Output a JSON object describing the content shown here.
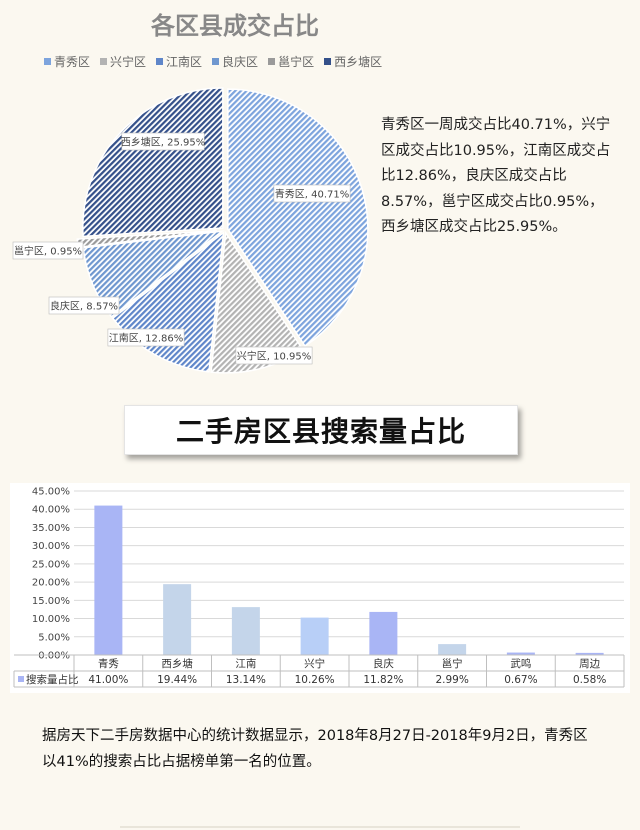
{
  "pie": {
    "title": "各区县成交占比",
    "description": "青秀区一周成交占比40.71%，兴宁区成交占比10.95%，江南区成交占比12.86%，良庆区成交占比8.57%，邕宁区成交占比0.95%，西乡塘区成交占比25.95%。"
  },
  "bar": {
    "heading": "二手房区县搜索量占比",
    "table_series_label": "搜索量占比",
    "footer": "据房天下二手房数据中心的统计数据显示，2018年8月27日-2018年9月2日，青秀区以41%的搜索占比占据榜单第一名的位置。"
  },
  "chart_data": [
    {
      "type": "pie",
      "title": "各区县成交占比",
      "legend_position": "top",
      "slices": [
        {
          "name": "青秀区",
          "value": 40.71,
          "label": "青秀区, 40.71%",
          "color": "#7da4dd"
        },
        {
          "name": "兴宁区",
          "value": 10.95,
          "label": "兴宁区, 10.95%",
          "color": "#b3b3b3"
        },
        {
          "name": "江南区",
          "value": 12.86,
          "label": "江南区, 12.86%",
          "color": "#5f86c9"
        },
        {
          "name": "良庆区",
          "value": 8.57,
          "label": "良庆区, 8.57%",
          "color": "#6f97cf"
        },
        {
          "name": "邕宁区",
          "value": 0.95,
          "label": "邕宁区, 0.95%",
          "color": "#9a9a9a"
        },
        {
          "name": "西乡塘区",
          "value": 25.95,
          "label": "西乡塘区, 25.95%",
          "color": "#34508a"
        }
      ]
    },
    {
      "type": "bar",
      "categories": [
        "青秀",
        "西乡塘",
        "江南",
        "兴宁",
        "良庆",
        "邕宁",
        "武鸣",
        "周边"
      ],
      "series": [
        {
          "name": "搜索量占比",
          "values": [
            41.0,
            19.44,
            13.14,
            10.26,
            11.82,
            2.99,
            0.67,
            0.58
          ],
          "labels": [
            "41.00%",
            "19.44%",
            "13.14%",
            "10.26%",
            "11.82%",
            "2.99%",
            "0.67%",
            "0.58%"
          ],
          "colors": [
            "#a9b5f5",
            "#c4d5ea",
            "#c4d5ea",
            "#b8cff7",
            "#a9b5f5",
            "#c4d5ea",
            "#a9b5f5",
            "#a9b5f5"
          ]
        }
      ],
      "ylim": [
        0,
        45
      ],
      "yticks": [
        "0.00%",
        "5.00%",
        "10.00%",
        "15.00%",
        "20.00%",
        "25.00%",
        "30.00%",
        "35.00%",
        "40.00%",
        "45.00%"
      ],
      "grid": true,
      "data_table": true,
      "legend_color": "#a9b5f5"
    }
  ]
}
